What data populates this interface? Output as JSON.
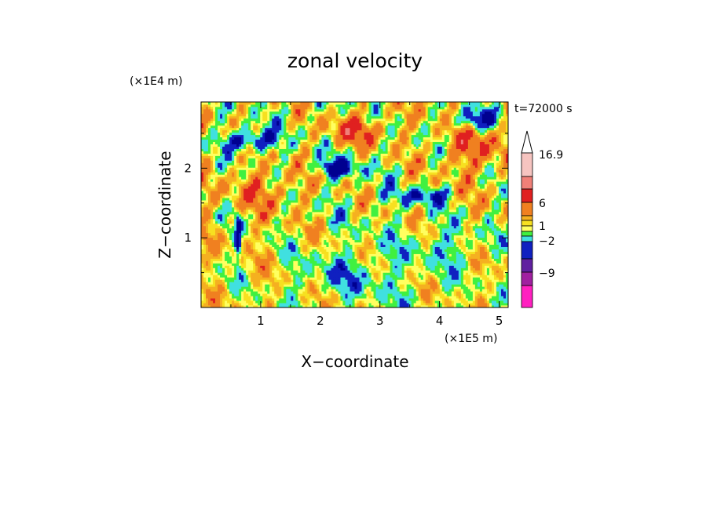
{
  "chart_data": {
    "type": "heatmap",
    "title": "zonal velocity",
    "time_label": "t=72000 s",
    "xlabel": "X−coordinate",
    "ylabel": "Z−coordinate",
    "x_unit": "(×1E5 m)",
    "y_unit": "(×1E4 m)",
    "xlim": [
      0.0,
      5.15
    ],
    "ylim": [
      0.0,
      2.95
    ],
    "x_ticks": [
      "1",
      "2",
      "3",
      "4",
      "5"
    ],
    "y_ticks": [
      "1",
      "2"
    ],
    "colorbar": {
      "labels": [
        "16.9",
        "6",
        "1",
        "−2",
        "−9"
      ],
      "colors": [
        "#f6c4c0",
        "#f08078",
        "#e02020",
        "#f08020",
        "#f5b020",
        "#f7e020",
        "#ffff60",
        "#40f040",
        "#40e0e0",
        "#1020c0",
        "#000090",
        "#6020a0",
        "#a020a0",
        "#e020c0",
        "#ff20c0"
      ]
    }
  }
}
